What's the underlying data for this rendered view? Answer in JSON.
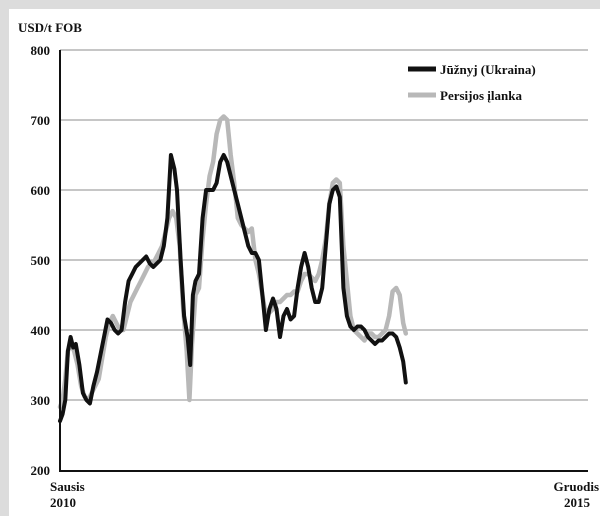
{
  "chart_data": {
    "type": "line",
    "ylabel": "USD/t FOB",
    "ylim": [
      200,
      800
    ],
    "yticks": [
      200,
      300,
      400,
      500,
      600,
      700,
      800
    ],
    "grid": true,
    "legend_position": "top-right",
    "x_start": [
      "Sausis",
      "2010"
    ],
    "x_end": [
      "Gruodis",
      "2015"
    ],
    "x_range": [
      2010.0,
      2016.0
    ],
    "series": [
      {
        "name": "Jūžnyj (Ukraina)",
        "color": "#111111",
        "points": [
          [
            2010.0,
            270
          ],
          [
            2010.03,
            280
          ],
          [
            2010.06,
            300
          ],
          [
            2010.09,
            370
          ],
          [
            2010.12,
            390
          ],
          [
            2010.15,
            375
          ],
          [
            2010.18,
            380
          ],
          [
            2010.22,
            350
          ],
          [
            2010.26,
            310
          ],
          [
            2010.3,
            300
          ],
          [
            2010.34,
            295
          ],
          [
            2010.38,
            320
          ],
          [
            2010.42,
            340
          ],
          [
            2010.46,
            365
          ],
          [
            2010.5,
            390
          ],
          [
            2010.54,
            415
          ],
          [
            2010.58,
            410
          ],
          [
            2010.62,
            400
          ],
          [
            2010.66,
            395
          ],
          [
            2010.7,
            400
          ],
          [
            2010.74,
            440
          ],
          [
            2010.78,
            470
          ],
          [
            2010.82,
            480
          ],
          [
            2010.86,
            490
          ],
          [
            2010.9,
            495
          ],
          [
            2010.94,
            500
          ],
          [
            2010.98,
            505
          ],
          [
            2011.02,
            495
          ],
          [
            2011.06,
            490
          ],
          [
            2011.1,
            495
          ],
          [
            2011.14,
            500
          ],
          [
            2011.18,
            520
          ],
          [
            2011.22,
            560
          ],
          [
            2011.26,
            650
          ],
          [
            2011.3,
            630
          ],
          [
            2011.33,
            600
          ],
          [
            2011.37,
            500
          ],
          [
            2011.41,
            420
          ],
          [
            2011.45,
            390
          ],
          [
            2011.48,
            350
          ],
          [
            2011.51,
            450
          ],
          [
            2011.54,
            470
          ],
          [
            2011.58,
            480
          ],
          [
            2011.62,
            560
          ],
          [
            2011.66,
            600
          ],
          [
            2011.7,
            600
          ],
          [
            2011.74,
            600
          ],
          [
            2011.78,
            610
          ],
          [
            2011.82,
            640
          ],
          [
            2011.86,
            650
          ],
          [
            2011.9,
            640
          ],
          [
            2011.94,
            620
          ],
          [
            2011.98,
            600
          ],
          [
            2012.02,
            580
          ],
          [
            2012.06,
            560
          ],
          [
            2012.1,
            540
          ],
          [
            2012.14,
            520
          ],
          [
            2012.18,
            510
          ],
          [
            2012.22,
            510
          ],
          [
            2012.26,
            500
          ],
          [
            2012.3,
            450
          ],
          [
            2012.34,
            400
          ],
          [
            2012.38,
            430
          ],
          [
            2012.42,
            445
          ],
          [
            2012.46,
            430
          ],
          [
            2012.5,
            390
          ],
          [
            2012.54,
            420
          ],
          [
            2012.58,
            430
          ],
          [
            2012.62,
            415
          ],
          [
            2012.66,
            420
          ],
          [
            2012.7,
            460
          ],
          [
            2012.74,
            490
          ],
          [
            2012.78,
            510
          ],
          [
            2012.82,
            490
          ],
          [
            2012.86,
            460
          ],
          [
            2012.9,
            440
          ],
          [
            2012.94,
            440
          ],
          [
            2012.98,
            460
          ],
          [
            2013.02,
            520
          ],
          [
            2013.06,
            580
          ],
          [
            2013.1,
            600
          ],
          [
            2013.14,
            605
          ],
          [
            2013.18,
            590
          ],
          [
            2013.22,
            460
          ],
          [
            2013.26,
            420
          ],
          [
            2013.3,
            405
          ],
          [
            2013.34,
            400
          ],
          [
            2013.38,
            405
          ],
          [
            2013.42,
            405
          ],
          [
            2013.46,
            400
          ],
          [
            2013.5,
            390
          ],
          [
            2013.54,
            385
          ],
          [
            2013.58,
            380
          ],
          [
            2013.62,
            385
          ],
          [
            2013.66,
            385
          ],
          [
            2013.7,
            390
          ],
          [
            2013.74,
            395
          ],
          [
            2013.78,
            395
          ],
          [
            2013.82,
            390
          ],
          [
            2013.86,
            375
          ],
          [
            2013.9,
            355
          ],
          [
            2013.93,
            325
          ]
        ]
      },
      {
        "name": "Persijos įlanka",
        "color": "#b8b8b8",
        "points": [
          [
            2010.0,
            290
          ],
          [
            2010.03,
            300
          ],
          [
            2010.06,
            330
          ],
          [
            2010.09,
            370
          ],
          [
            2010.12,
            380
          ],
          [
            2010.16,
            370
          ],
          [
            2010.2,
            350
          ],
          [
            2010.24,
            320
          ],
          [
            2010.28,
            305
          ],
          [
            2010.32,
            300
          ],
          [
            2010.36,
            310
          ],
          [
            2010.4,
            320
          ],
          [
            2010.44,
            330
          ],
          [
            2010.48,
            360
          ],
          [
            2010.52,
            390
          ],
          [
            2010.56,
            410
          ],
          [
            2010.6,
            420
          ],
          [
            2010.64,
            410
          ],
          [
            2010.68,
            400
          ],
          [
            2010.72,
            400
          ],
          [
            2010.76,
            420
          ],
          [
            2010.8,
            440
          ],
          [
            2010.84,
            450
          ],
          [
            2010.88,
            460
          ],
          [
            2010.92,
            470
          ],
          [
            2010.96,
            480
          ],
          [
            2011.0,
            490
          ],
          [
            2011.04,
            495
          ],
          [
            2011.08,
            500
          ],
          [
            2011.12,
            510
          ],
          [
            2011.16,
            520
          ],
          [
            2011.2,
            540
          ],
          [
            2011.24,
            560
          ],
          [
            2011.28,
            570
          ],
          [
            2011.32,
            560
          ],
          [
            2011.36,
            520
          ],
          [
            2011.4,
            430
          ],
          [
            2011.44,
            370
          ],
          [
            2011.47,
            300
          ],
          [
            2011.5,
            380
          ],
          [
            2011.54,
            450
          ],
          [
            2011.58,
            460
          ],
          [
            2011.62,
            530
          ],
          [
            2011.66,
            580
          ],
          [
            2011.7,
            620
          ],
          [
            2011.74,
            640
          ],
          [
            2011.78,
            680
          ],
          [
            2011.82,
            700
          ],
          [
            2011.86,
            705
          ],
          [
            2011.9,
            700
          ],
          [
            2011.94,
            650
          ],
          [
            2011.98,
            610
          ],
          [
            2012.02,
            560
          ],
          [
            2012.06,
            550
          ],
          [
            2012.1,
            545
          ],
          [
            2012.14,
            540
          ],
          [
            2012.18,
            545
          ],
          [
            2012.22,
            500
          ],
          [
            2012.26,
            480
          ],
          [
            2012.3,
            450
          ],
          [
            2012.34,
            420
          ],
          [
            2012.38,
            425
          ],
          [
            2012.42,
            430
          ],
          [
            2012.46,
            440
          ],
          [
            2012.5,
            440
          ],
          [
            2012.54,
            445
          ],
          [
            2012.58,
            450
          ],
          [
            2012.62,
            450
          ],
          [
            2012.66,
            455
          ],
          [
            2012.7,
            455
          ],
          [
            2012.74,
            470
          ],
          [
            2012.78,
            480
          ],
          [
            2012.82,
            480
          ],
          [
            2012.86,
            475
          ],
          [
            2012.9,
            470
          ],
          [
            2012.94,
            480
          ],
          [
            2012.98,
            500
          ],
          [
            2013.02,
            530
          ],
          [
            2013.06,
            580
          ],
          [
            2013.1,
            610
          ],
          [
            2013.14,
            615
          ],
          [
            2013.18,
            610
          ],
          [
            2013.22,
            520
          ],
          [
            2013.26,
            470
          ],
          [
            2013.3,
            420
          ],
          [
            2013.34,
            400
          ],
          [
            2013.38,
            395
          ],
          [
            2013.42,
            390
          ],
          [
            2013.46,
            385
          ],
          [
            2013.5,
            395
          ],
          [
            2013.54,
            395
          ],
          [
            2013.58,
            390
          ],
          [
            2013.62,
            390
          ],
          [
            2013.66,
            395
          ],
          [
            2013.7,
            400
          ],
          [
            2013.74,
            420
          ],
          [
            2013.78,
            455
          ],
          [
            2013.82,
            460
          ],
          [
            2013.86,
            450
          ],
          [
            2013.9,
            410
          ],
          [
            2013.93,
            395
          ]
        ]
      }
    ]
  }
}
